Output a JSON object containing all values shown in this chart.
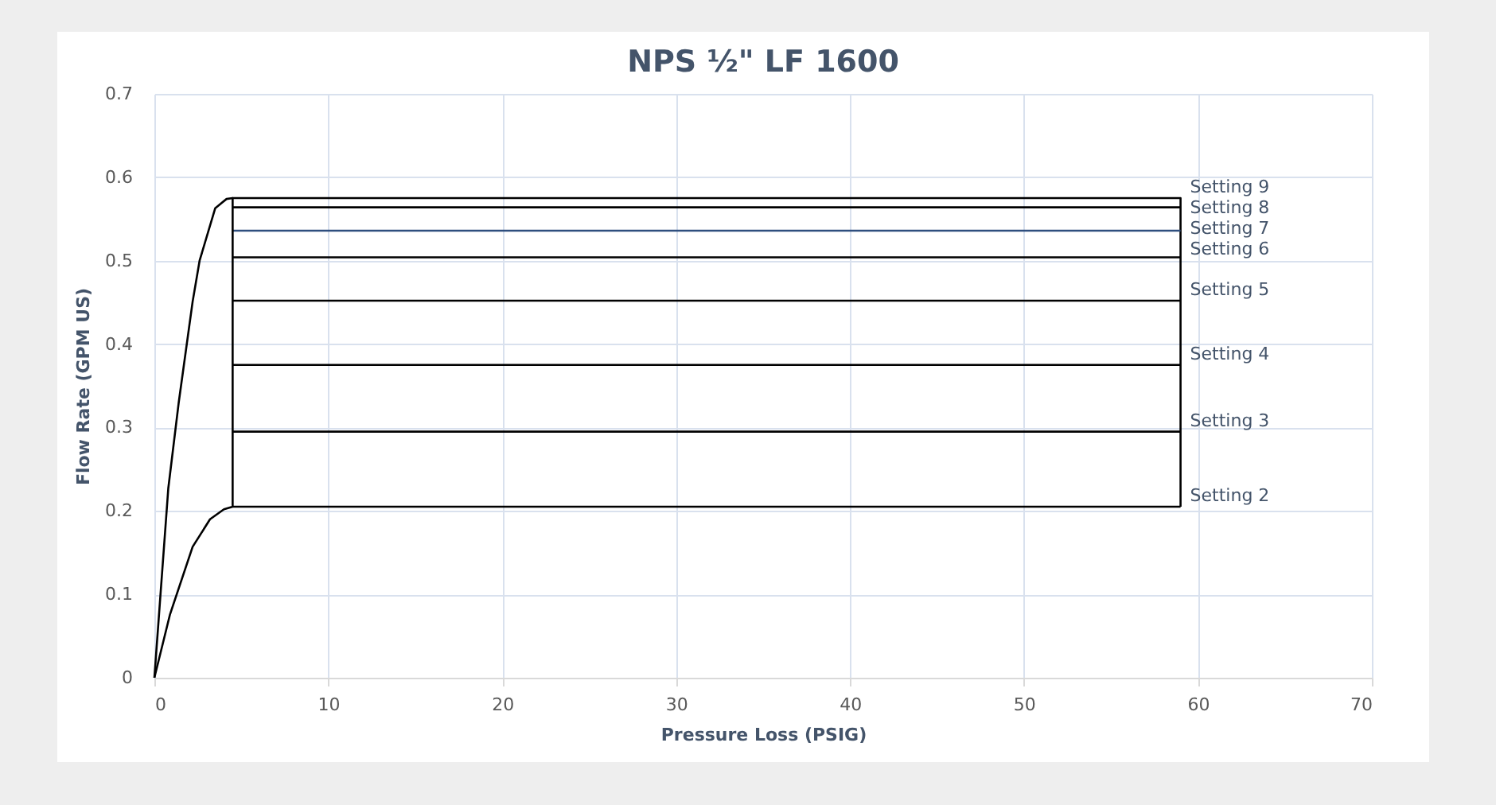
{
  "chart_data": {
    "type": "line",
    "title": "NPS ½\" LF 1600",
    "xlabel": "Pressure Loss (PSIG)",
    "ylabel": "Flow Rate (GPM US)",
    "xlim": [
      0,
      70
    ],
    "xticks": [
      0,
      10,
      20,
      30,
      40,
      50,
      60,
      70
    ],
    "ylim": [
      0,
      0.7
    ],
    "yticks": [
      0,
      0.1,
      0.2,
      0.3,
      0.4,
      0.5,
      0.6,
      0.7
    ],
    "grid": true,
    "legend": false,
    "marker": "none",
    "line_style": "solid",
    "series": [
      {
        "name": "Setting 9",
        "color": "#000000",
        "x": [
          0,
          0.8,
          1.4,
          2.2,
          2.6,
          3.5,
          4.15,
          4.5,
          59,
          59
        ],
        "values": [
          0,
          0.227,
          0.33,
          0.451,
          0.5,
          0.563,
          0.574,
          0.575,
          0.575,
          0.205
        ]
      },
      {
        "name": "Setting 8",
        "color": "#000000",
        "x": [
          4.5,
          59
        ],
        "values": [
          0.564,
          0.564
        ]
      },
      {
        "name": "Setting 7",
        "color": "#2e4e7e",
        "x": [
          4.5,
          59
        ],
        "values": [
          0.536,
          0.536
        ]
      },
      {
        "name": "Setting 6",
        "color": "#000000",
        "x": [
          4.5,
          59
        ],
        "values": [
          0.504,
          0.504
        ]
      },
      {
        "name": "Setting 5",
        "color": "#000000",
        "x": [
          4.5,
          59
        ],
        "values": [
          0.452,
          0.452
        ]
      },
      {
        "name": "Setting 4",
        "color": "#000000",
        "x": [
          4.5,
          59
        ],
        "values": [
          0.375,
          0.375
        ]
      },
      {
        "name": "Setting 3",
        "color": "#000000",
        "x": [
          4.5,
          59
        ],
        "values": [
          0.295,
          0.295
        ]
      },
      {
        "name": "Setting 2",
        "color": "#000000",
        "x": [
          0,
          0.9,
          2.2,
          3.2,
          4.0,
          4.5,
          4.5,
          4.5,
          59
        ],
        "values": [
          0,
          0.076,
          0.157,
          0.19,
          0.202,
          0.205,
          0.575,
          0.205,
          0.205
        ]
      }
    ]
  }
}
